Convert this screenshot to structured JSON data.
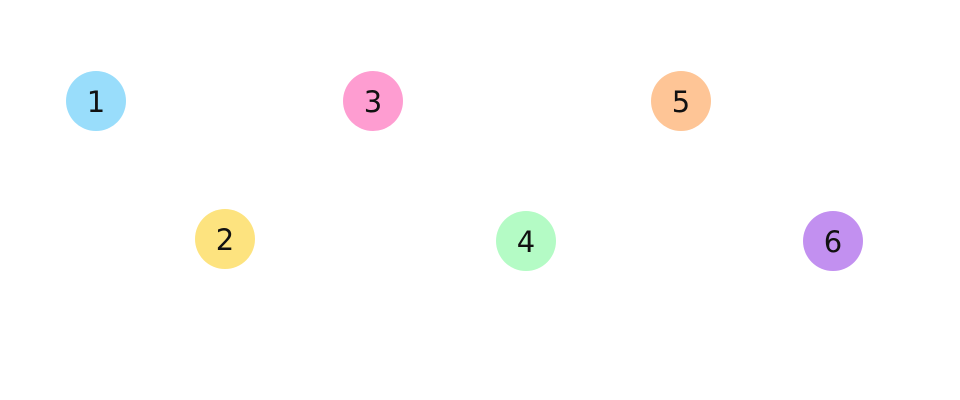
{
  "nodes": [
    {
      "label": "1",
      "color": "#99ddfb"
    },
    {
      "label": "2",
      "color": "#fde37f"
    },
    {
      "label": "3",
      "color": "#fe9dd1"
    },
    {
      "label": "4",
      "color": "#b4fbc5"
    },
    {
      "label": "5",
      "color": "#fec596"
    },
    {
      "label": "6",
      "color": "#c290f0"
    }
  ]
}
